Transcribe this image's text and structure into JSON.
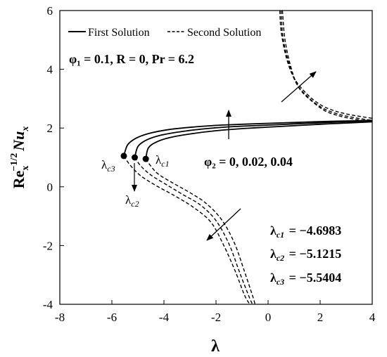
{
  "chart_data": {
    "type": "line",
    "title": "",
    "xlabel": "λ",
    "ylabel": {
      "base": "Re",
      "sub": "x",
      "sup": "−1/2",
      "var": "Nu",
      "var_sub": "x"
    },
    "xlim": [
      -8,
      4
    ],
    "ylim": [
      -4,
      6
    ],
    "xticks": [
      -8,
      -6,
      -4,
      -2,
      0,
      2,
      4
    ],
    "yticks": [
      -4,
      -2,
      0,
      2,
      4,
      6
    ],
    "legend": {
      "placement": "top",
      "first": "First Solution",
      "second": "Second Solution"
    },
    "params_label": "φ₁ = 0.1, R = 0, Pr = 6.2",
    "phi2_label": "φ₂ = 0, 0.02, 0.04",
    "critical_labels": [
      "λc1",
      "λc2",
      "λc3"
    ],
    "critical_values": [
      {
        "label": "λc1",
        "value": "−4.6983"
      },
      {
        "label": "λc2",
        "value": "−5.1215"
      },
      {
        "label": "λc3",
        "value": "−5.5404"
      }
    ],
    "series": [
      {
        "name": "φ₂ = 0",
        "critical_point": [
          -4.6983,
          0.95
        ],
        "first": [
          [
            -4.6983,
            0.95
          ],
          [
            -4.6,
            1.32
          ],
          [
            -4.3,
            1.52
          ],
          [
            -3.8,
            1.67
          ],
          [
            -3,
            1.8
          ],
          [
            -2,
            1.91
          ],
          [
            -1,
            1.98
          ],
          [
            0,
            2.03
          ],
          [
            1,
            2.08
          ],
          [
            2,
            2.13
          ],
          [
            3,
            2.17
          ],
          [
            4,
            2.21
          ]
        ],
        "second": [
          [
            -4.6983,
            0.95
          ],
          [
            -4.5,
            0.7
          ],
          [
            -4.2,
            0.42
          ],
          [
            -3.6,
            0.1
          ],
          [
            -3,
            -0.2
          ],
          [
            -2.4,
            -0.55
          ],
          [
            -1.8,
            -1.1
          ],
          [
            -1.3,
            -1.9
          ],
          [
            -0.9,
            -2.9
          ],
          [
            -0.6,
            -3.7
          ],
          [
            -0.5,
            -4
          ]
        ],
        "second_upper": [
          [
            0.45,
            6
          ],
          [
            0.5,
            5.3
          ],
          [
            0.7,
            4.4
          ],
          [
            1,
            3.7
          ],
          [
            1.5,
            3.15
          ],
          [
            2,
            2.8
          ],
          [
            2.5,
            2.6
          ],
          [
            3,
            2.48
          ],
          [
            3.5,
            2.4
          ],
          [
            4,
            2.33
          ]
        ]
      },
      {
        "name": "φ₂ = 0.02",
        "critical_point": [
          -5.1215,
          1.0
        ],
        "first": [
          [
            -5.1215,
            1.0
          ],
          [
            -5,
            1.37
          ],
          [
            -4.7,
            1.58
          ],
          [
            -4.2,
            1.74
          ],
          [
            -3.4,
            1.87
          ],
          [
            -2.5,
            1.97
          ],
          [
            -1.5,
            2.04
          ],
          [
            0,
            2.1
          ],
          [
            1,
            2.14
          ],
          [
            2,
            2.18
          ],
          [
            3,
            2.21
          ],
          [
            4,
            2.24
          ]
        ],
        "second": [
          [
            -5.1215,
            1.0
          ],
          [
            -4.9,
            0.72
          ],
          [
            -4.5,
            0.4
          ],
          [
            -3.9,
            0.07
          ],
          [
            -3.3,
            -0.25
          ],
          [
            -2.6,
            -0.62
          ],
          [
            -2,
            -1.15
          ],
          [
            -1.5,
            -1.95
          ],
          [
            -1.1,
            -2.9
          ],
          [
            -0.75,
            -3.7
          ],
          [
            -0.6,
            -4
          ]
        ],
        "second_upper": [
          [
            0.5,
            6
          ],
          [
            0.57,
            5.1
          ],
          [
            0.8,
            4.2
          ],
          [
            1.1,
            3.5
          ],
          [
            1.6,
            3.0
          ],
          [
            2.1,
            2.68
          ],
          [
            2.6,
            2.5
          ],
          [
            3.1,
            2.39
          ],
          [
            3.6,
            2.31
          ],
          [
            4,
            2.26
          ]
        ]
      },
      {
        "name": "φ₂ = 0.04",
        "critical_point": [
          -5.5404,
          1.05
        ],
        "first": [
          [
            -5.5404,
            1.05
          ],
          [
            -5.4,
            1.42
          ],
          [
            -5.1,
            1.64
          ],
          [
            -4.6,
            1.81
          ],
          [
            -3.8,
            1.95
          ],
          [
            -2.8,
            2.04
          ],
          [
            -1.8,
            2.1
          ],
          [
            0,
            2.16
          ],
          [
            1,
            2.19
          ],
          [
            2,
            2.22
          ],
          [
            3,
            2.24
          ],
          [
            4,
            2.26
          ]
        ],
        "second": [
          [
            -5.5404,
            1.05
          ],
          [
            -5.3,
            0.74
          ],
          [
            -4.9,
            0.38
          ],
          [
            -4.3,
            0.04
          ],
          [
            -3.6,
            -0.3
          ],
          [
            -2.9,
            -0.68
          ],
          [
            -2.2,
            -1.2
          ],
          [
            -1.7,
            -2.0
          ],
          [
            -1.25,
            -2.9
          ],
          [
            -0.9,
            -3.7
          ],
          [
            -0.7,
            -4
          ]
        ],
        "second_upper": [
          [
            0.55,
            6
          ],
          [
            0.65,
            5.0
          ],
          [
            0.9,
            4.0
          ],
          [
            1.2,
            3.35
          ],
          [
            1.7,
            2.9
          ],
          [
            2.2,
            2.58
          ],
          [
            2.7,
            2.42
          ],
          [
            3.2,
            2.32
          ],
          [
            3.7,
            2.25
          ],
          [
            4,
            2.21
          ]
        ]
      }
    ]
  }
}
